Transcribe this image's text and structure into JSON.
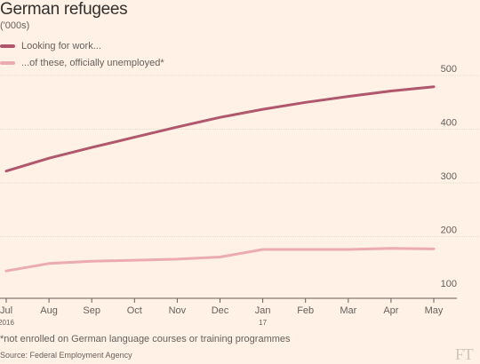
{
  "title": "German refugees",
  "subtitle": "('000s)",
  "footnote": "*not enrolled on German language courses or training programmes",
  "source": "Source: Federal Employment Agency",
  "logo": "FT",
  "colors": {
    "background": "#FFF1E5",
    "series1": "#B0566D",
    "series2": "#ECABB1",
    "grid": "#E6D9CE",
    "text": "#66605C"
  },
  "chart_data": {
    "type": "line",
    "x": [
      "Jul",
      "Aug",
      "Sep",
      "Oct",
      "Nov",
      "Dec",
      "Jan",
      "Feb",
      "Mar",
      "Apr",
      "May"
    ],
    "x_sublabels": {
      "Jul": "2016",
      "Jan": "17"
    },
    "series": [
      {
        "name": "Looking for work...",
        "color": "#B0566D",
        "values": [
          322,
          346,
          366,
          385,
          404,
          422,
          437,
          450,
          461,
          471,
          479
        ]
      },
      {
        "name": "...of these, officially unemployed*",
        "color": "#ECABB1",
        "values": [
          136,
          150,
          154,
          156,
          158,
          162,
          176,
          176,
          176,
          178,
          177
        ]
      }
    ],
    "yticks": [
      100,
      200,
      300,
      400,
      500
    ],
    "ylim": [
      100,
      500
    ],
    "y_axis_position": "right",
    "grid": true,
    "legend": "top-left"
  }
}
